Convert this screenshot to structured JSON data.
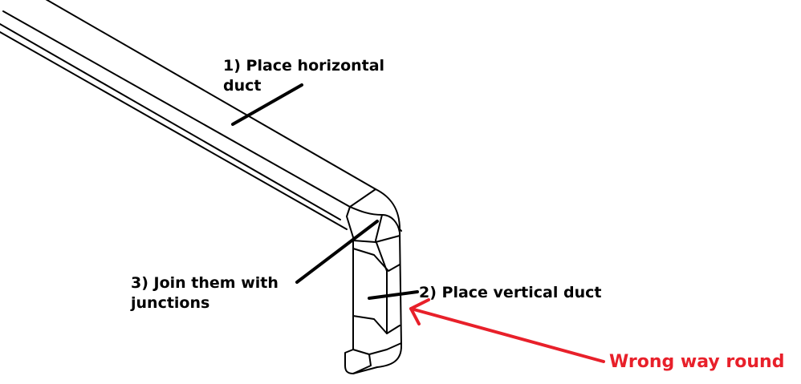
{
  "labels": {
    "step1_line1": "1) Place horizontal",
    "step1_line2": "duct",
    "step2": "2) Place vertical duct",
    "step3_line1": "3) Join them with",
    "step3_line2": "junctions",
    "warning": "Wrong way round"
  },
  "colors": {
    "ink": "#000000",
    "warning": "#e8202a",
    "background": "#ffffff"
  }
}
